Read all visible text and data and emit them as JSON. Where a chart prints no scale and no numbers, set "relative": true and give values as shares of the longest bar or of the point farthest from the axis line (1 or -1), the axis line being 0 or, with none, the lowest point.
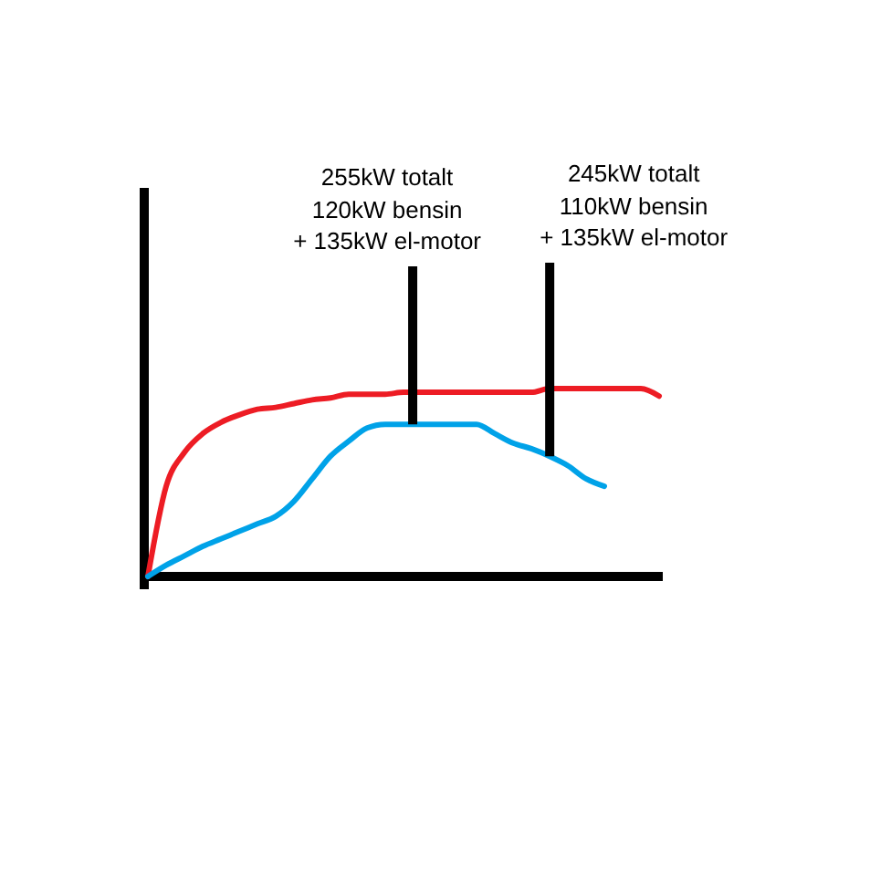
{
  "chart_data": {
    "type": "line",
    "relative": true,
    "categories": [
      null,
      null,
      null,
      null,
      null,
      null,
      null,
      null,
      null,
      null,
      null,
      null,
      null,
      null,
      null,
      null,
      null,
      null,
      null,
      null,
      null,
      null,
      null,
      null,
      null,
      null,
      null,
      null,
      null
    ],
    "series": [
      {
        "color": "#ed1c24",
        "values": [
          0,
          0.48,
          0.66,
          0.76,
          0.82,
          0.86,
          0.89,
          0.9,
          0.92,
          0.94,
          0.95,
          0.97,
          0.97,
          0.97,
          0.98,
          0.98,
          0.98,
          0.98,
          0.98,
          0.98,
          0.98,
          0.98,
          1,
          1,
          1,
          1,
          1,
          1,
          0.96
        ]
      },
      {
        "color": "#00a2e8",
        "values": [
          0,
          0.06,
          0.11,
          0.16,
          0.2,
          0.24,
          0.28,
          0.32,
          0.4,
          0.52,
          0.64,
          0.72,
          0.79,
          0.81,
          0.81,
          0.81,
          0.81,
          0.81,
          0.81,
          0.76,
          0.71,
          0.68,
          0.64,
          0.59,
          0.52,
          0.48,
          null,
          null,
          null
        ]
      }
    ],
    "annotations": [
      "255kW totalt\n\n120kW bensin\n+ 135kW el-motor",
      "245kW totalt\n\n110kW bensin\n+ 135kW el-motor"
    ]
  }
}
